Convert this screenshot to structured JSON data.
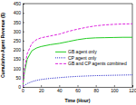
{
  "chart_data": {
    "type": "line",
    "x_label": "Time (Hour)",
    "y_label": "Cumulative Agent Revenue ($)",
    "x": [
      0,
      2,
      5,
      10,
      15,
      20,
      30,
      40,
      50,
      60,
      70,
      80,
      90,
      100,
      110,
      120
    ],
    "series": [
      {
        "name": "GB agent only",
        "color": "#22cc22",
        "line_style": "solid",
        "values": [
          0,
          80,
          150,
          195,
          210,
          218,
          228,
          235,
          245,
          255,
          262,
          265,
          266,
          267,
          268,
          268
        ]
      },
      {
        "name": "CP agent only",
        "color": "#3333cc",
        "line_style": "dotted",
        "values": [
          0,
          8,
          18,
          28,
          35,
          40,
          46,
          50,
          54,
          57,
          59,
          61,
          62,
          63,
          64,
          65
        ]
      },
      {
        "name": "GB and CP agents combined",
        "color": "#dd22dd",
        "line_style": "dashed",
        "values": [
          0,
          95,
          180,
          235,
          255,
          265,
          275,
          285,
          300,
          312,
          322,
          330,
          335,
          338,
          340,
          341
        ]
      }
    ],
    "xlim": [
      0,
      120
    ],
    "xticks": [
      0,
      20,
      40,
      60,
      80,
      100,
      120
    ],
    "ylim": [
      0,
      450
    ],
    "yticks": [
      0,
      50,
      100,
      150,
      200,
      250,
      300,
      350,
      400,
      450
    ],
    "grid": false,
    "legend": "lower right"
  }
}
